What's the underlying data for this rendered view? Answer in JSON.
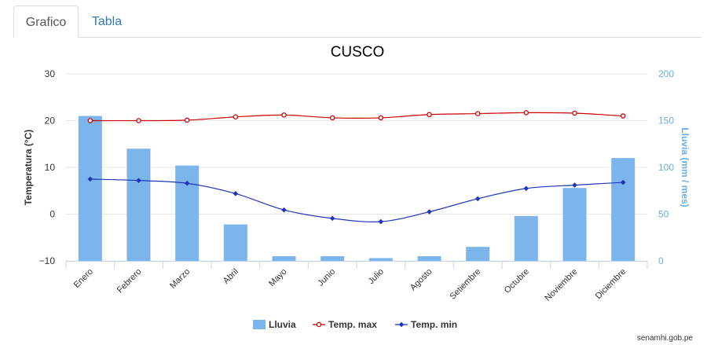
{
  "tabs": [
    {
      "label": "Grafico",
      "active": true
    },
    {
      "label": "Tabla",
      "active": false
    }
  ],
  "chart_data": {
    "type": "bar+line",
    "title": "CUSCO",
    "categories": [
      "Enero",
      "Febrero",
      "Marzo",
      "Abril",
      "Mayo",
      "Junio",
      "Julio",
      "Agosto",
      "Setiembre",
      "Octubre",
      "Noviembre",
      "Diciembre"
    ],
    "y_left": {
      "label": "Temperatura (°C)",
      "min": -10,
      "max": 30,
      "ticks": [
        -10,
        0,
        10,
        20,
        30
      ]
    },
    "y_right": {
      "label": "Lluvia (mm / mes)",
      "min": 0,
      "max": 200,
      "ticks": [
        0,
        50,
        100,
        150,
        200
      ]
    },
    "grid": true,
    "legend_position": "bottom",
    "series": [
      {
        "name": "Lluvia",
        "type": "bar",
        "axis": "right",
        "color": "#7cb5ec",
        "values": [
          155,
          120,
          102,
          39,
          5,
          5,
          3,
          5,
          15,
          48,
          78,
          110
        ]
      },
      {
        "name": "Temp. max",
        "type": "line",
        "axis": "left",
        "color": "#cc0000",
        "values": [
          20.0,
          20.0,
          20.1,
          20.8,
          21.2,
          20.6,
          20.6,
          21.3,
          21.5,
          21.7,
          21.6,
          21.0
        ]
      },
      {
        "name": "Temp. min",
        "type": "line",
        "axis": "left",
        "color": "#1f36b8",
        "values": [
          7.5,
          7.2,
          6.6,
          4.4,
          0.9,
          -0.9,
          -1.6,
          0.5,
          3.3,
          5.5,
          6.2,
          6.8
        ]
      }
    ]
  },
  "credit": "senamhi.gob.pe"
}
